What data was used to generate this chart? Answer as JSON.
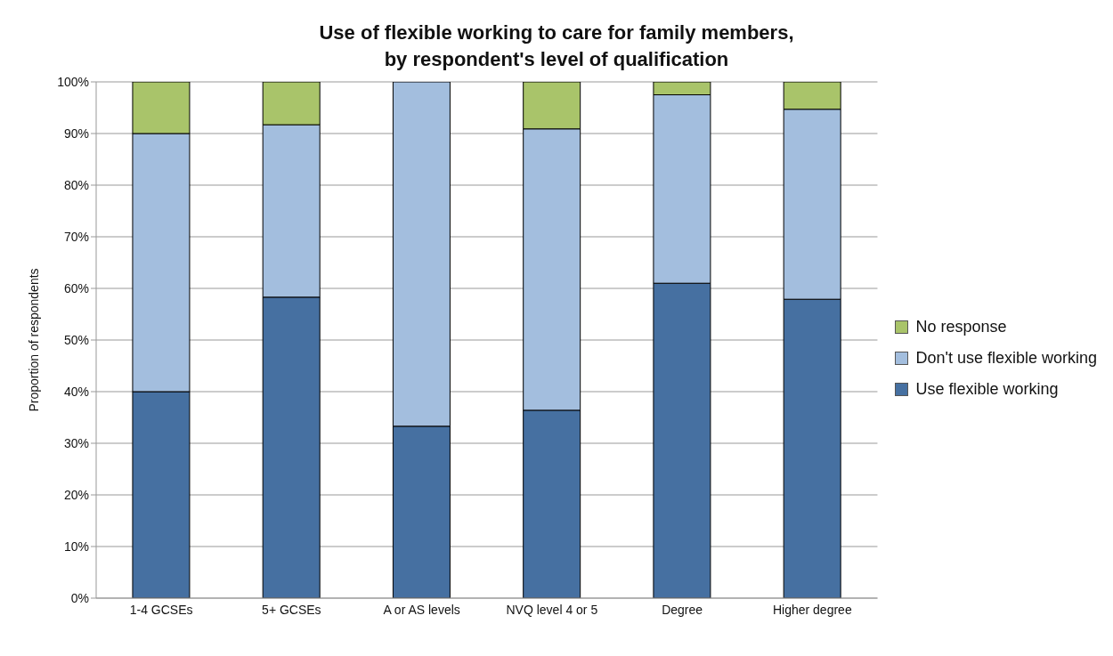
{
  "chart_data": {
    "type": "bar",
    "stacked": true,
    "title": "Use of flexible working to care for family members,\nby respondent's level of qualification",
    "ylabel": "Proportion of respondents",
    "categories": [
      "1-4 GCSEs",
      "5+ GCSEs",
      "A or AS levels",
      "NVQ level 4 or 5",
      "Degree",
      "Higher degree"
    ],
    "series": [
      {
        "name": "Use flexible working",
        "color": "#4670a1",
        "values": [
          40,
          58.3,
          33.3,
          36.4,
          61,
          57.9
        ]
      },
      {
        "name": "Don't use flexible working",
        "color": "#a3bede",
        "values": [
          50,
          33.4,
          66.7,
          54.5,
          36.5,
          36.8
        ]
      },
      {
        "name": "No response",
        "color": "#a9c46a",
        "values": [
          10,
          8.3,
          0,
          9.1,
          2.5,
          5.3
        ]
      }
    ],
    "ylim": [
      0,
      100
    ],
    "yticks": [
      {
        "value": 0,
        "label": "0%"
      },
      {
        "value": 10,
        "label": "10%"
      },
      {
        "value": 20,
        "label": "20%"
      },
      {
        "value": 30,
        "label": "30%"
      },
      {
        "value": 40,
        "label": "40%"
      },
      {
        "value": 50,
        "label": "50%"
      },
      {
        "value": 60,
        "label": "60%"
      },
      {
        "value": 70,
        "label": "70%"
      },
      {
        "value": 80,
        "label": "80%"
      },
      {
        "value": 90,
        "label": "90%"
      },
      {
        "value": 100,
        "label": "100%"
      }
    ],
    "grid": "y",
    "legend": "right"
  }
}
